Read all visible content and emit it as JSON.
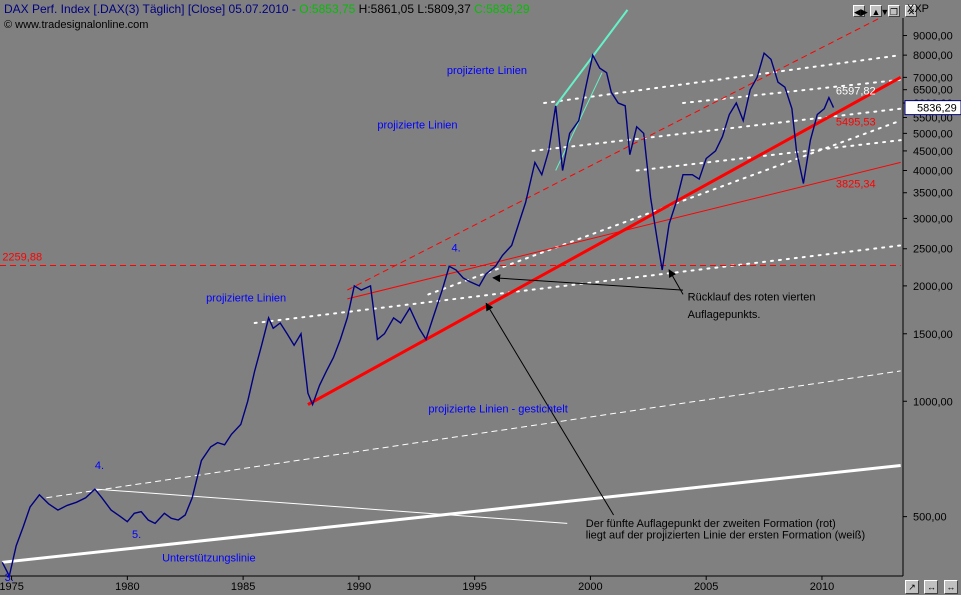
{
  "header": {
    "name": "DAX Perf. Index [.DAX(3)  Täglich] [Close] 05.07.2010 - ",
    "open": "O:5853,75",
    "high": "H:5861,05",
    "low": "L:5809,37",
    "close": "C:5836,29",
    "source": "© www.tradesignalonline.com",
    "currency": "XXP",
    "window_buttons": [
      "◀▶",
      "▲▼",
      "❐",
      "✕"
    ],
    "scroll_buttons": [
      "↗",
      "↔",
      "↔"
    ]
  },
  "chart_data": {
    "type": "line",
    "title": "",
    "xlabel": "",
    "ylabel": "",
    "log_scale": true,
    "grid": false,
    "x_ticks": [
      "1975",
      "1980",
      "1985",
      "1990",
      "1995",
      "2000",
      "2005",
      "2010"
    ],
    "x_range": [
      1974.5,
      2013.5
    ],
    "y_ticks": [
      "9000,00",
      "8000,00",
      "7000,00",
      "6500,00",
      "6000,00",
      "5500,00",
      "5000,00",
      "4500,00",
      "4000,00",
      "3500,00",
      "3000,00",
      "2500,00",
      "2000,00",
      "1500,00",
      "1000,00",
      "500,00"
    ],
    "y_range": [
      350,
      10000
    ],
    "last_price_label": "5836,29",
    "series": [
      {
        "color": "#000080",
        "points": [
          [
            1974.6,
            380
          ],
          [
            1974.9,
            350
          ],
          [
            1975.2,
            420
          ],
          [
            1975.5,
            470
          ],
          [
            1975.8,
            530
          ],
          [
            1976.2,
            570
          ],
          [
            1976.6,
            540
          ],
          [
            1977.0,
            520
          ],
          [
            1977.4,
            535
          ],
          [
            1977.8,
            545
          ],
          [
            1978.2,
            560
          ],
          [
            1978.6,
            590
          ],
          [
            1978.9,
            560
          ],
          [
            1979.3,
            520
          ],
          [
            1979.7,
            500
          ],
          [
            1980.0,
            485
          ],
          [
            1980.3,
            510
          ],
          [
            1980.6,
            515
          ],
          [
            1980.9,
            490
          ],
          [
            1981.2,
            480
          ],
          [
            1981.6,
            510
          ],
          [
            1981.9,
            495
          ],
          [
            1982.2,
            490
          ],
          [
            1982.5,
            505
          ],
          [
            1982.8,
            560
          ],
          [
            1983.2,
            700
          ],
          [
            1983.6,
            760
          ],
          [
            1983.9,
            780
          ],
          [
            1984.2,
            770
          ],
          [
            1984.5,
            820
          ],
          [
            1984.9,
            870
          ],
          [
            1985.2,
            1000
          ],
          [
            1985.5,
            1200
          ],
          [
            1985.8,
            1400
          ],
          [
            1986.1,
            1650
          ],
          [
            1986.3,
            1550
          ],
          [
            1986.6,
            1600
          ],
          [
            1986.9,
            1500
          ],
          [
            1987.2,
            1400
          ],
          [
            1987.5,
            1500
          ],
          [
            1987.8,
            1050
          ],
          [
            1988.0,
            980
          ],
          [
            1988.3,
            1100
          ],
          [
            1988.6,
            1200
          ],
          [
            1988.9,
            1300
          ],
          [
            1989.2,
            1450
          ],
          [
            1989.5,
            1650
          ],
          [
            1989.8,
            2000
          ],
          [
            1990.1,
            1950
          ],
          [
            1990.5,
            2000
          ],
          [
            1990.8,
            1450
          ],
          [
            1991.1,
            1500
          ],
          [
            1991.5,
            1650
          ],
          [
            1991.8,
            1600
          ],
          [
            1992.2,
            1750
          ],
          [
            1992.6,
            1550
          ],
          [
            1992.9,
            1450
          ],
          [
            1993.2,
            1650
          ],
          [
            1993.6,
            1950
          ],
          [
            1993.9,
            2250
          ],
          [
            1994.2,
            2200
          ],
          [
            1994.5,
            2100
          ],
          [
            1994.8,
            2050
          ],
          [
            1995.2,
            2000
          ],
          [
            1995.5,
            2150
          ],
          [
            1995.9,
            2250
          ],
          [
            1996.2,
            2400
          ],
          [
            1996.6,
            2550
          ],
          [
            1996.9,
            2900
          ],
          [
            1997.2,
            3300
          ],
          [
            1997.6,
            4200
          ],
          [
            1997.9,
            3900
          ],
          [
            1998.2,
            4500
          ],
          [
            1998.5,
            5900
          ],
          [
            1998.8,
            4000
          ],
          [
            1999.1,
            5000
          ],
          [
            1999.5,
            5400
          ],
          [
            1999.8,
            6600
          ],
          [
            2000.1,
            8000
          ],
          [
            2000.4,
            7400
          ],
          [
            2000.7,
            7200
          ],
          [
            2000.9,
            6400
          ],
          [
            2001.2,
            6000
          ],
          [
            2001.5,
            5900
          ],
          [
            2001.7,
            4400
          ],
          [
            2002.0,
            5200
          ],
          [
            2002.3,
            5000
          ],
          [
            2002.6,
            3400
          ],
          [
            2002.9,
            2600
          ],
          [
            2003.1,
            2200
          ],
          [
            2003.4,
            2900
          ],
          [
            2003.7,
            3300
          ],
          [
            2004.0,
            3900
          ],
          [
            2004.4,
            3900
          ],
          [
            2004.7,
            3800
          ],
          [
            2005.0,
            4300
          ],
          [
            2005.4,
            4500
          ],
          [
            2005.7,
            4900
          ],
          [
            2006.0,
            5600
          ],
          [
            2006.3,
            6000
          ],
          [
            2006.6,
            5400
          ],
          [
            2006.9,
            6500
          ],
          [
            2007.2,
            7000
          ],
          [
            2007.5,
            8100
          ],
          [
            2007.8,
            7800
          ],
          [
            2008.1,
            6800
          ],
          [
            2008.4,
            6600
          ],
          [
            2008.7,
            5800
          ],
          [
            2008.9,
            4500
          ],
          [
            2009.2,
            3700
          ],
          [
            2009.5,
            4800
          ],
          [
            2009.8,
            5600
          ],
          [
            2010.1,
            5800
          ],
          [
            2010.3,
            6200
          ],
          [
            2010.5,
            5836
          ]
        ]
      }
    ],
    "lines": [
      {
        "kind": "support-white",
        "style": "solid",
        "width": 3,
        "from": [
          1974.6,
          380
        ],
        "to": [
          2013.4,
          680
        ]
      },
      {
        "kind": "upper-white",
        "style": "solid",
        "width": 1,
        "from": [
          1978.6,
          590
        ],
        "to": [
          1999.0,
          480
        ]
      },
      {
        "kind": "projected-white-dashed",
        "style": "dashed",
        "width": 1,
        "from": [
          1976.5,
          560
        ],
        "to": [
          2013.4,
          1200
        ]
      },
      {
        "kind": "dotted-white-1",
        "style": "dotted",
        "width": 2,
        "from": [
          1985.5,
          1600
        ],
        "to": [
          2013.4,
          2550
        ]
      },
      {
        "kind": "dotted-white-2",
        "style": "dotted",
        "width": 2,
        "from": [
          1993.0,
          1900
        ],
        "to": [
          2013.4,
          5400
        ]
      },
      {
        "kind": "dotted-white-3",
        "style": "dotted",
        "width": 2,
        "from": [
          1998.0,
          6000
        ],
        "to": [
          2013.4,
          8000
        ]
      },
      {
        "kind": "dotted-white-4",
        "style": "dotted",
        "width": 2,
        "from": [
          1997.5,
          4500
        ],
        "to": [
          2013.4,
          5800
        ]
      },
      {
        "kind": "dotted-white-5",
        "style": "dotted",
        "width": 2,
        "from": [
          2002.0,
          4000
        ],
        "to": [
          2013.4,
          4800
        ]
      },
      {
        "kind": "dotted-white-6",
        "style": "dotted",
        "width": 2,
        "from": [
          2004.0,
          6000
        ],
        "to": [
          2013.4,
          6900
        ]
      },
      {
        "kind": "red-thick",
        "style": "solid",
        "width": 3,
        "from": [
          1987.8,
          980
        ],
        "to": [
          2013.4,
          7000
        ]
      },
      {
        "kind": "red-thin",
        "style": "solid",
        "width": 1,
        "from": [
          1989.5,
          1850
        ],
        "to": [
          2013.4,
          4200
        ]
      },
      {
        "kind": "red-dashed-trend",
        "style": "dashed",
        "width": 1,
        "from": [
          1989.5,
          1950
        ],
        "to": [
          2012.5,
          10000
        ]
      },
      {
        "kind": "red-horizontal",
        "style": "dashed",
        "width": 1,
        "from": [
          1974.5,
          2259.88
        ],
        "to": [
          2013.4,
          2259.88
        ]
      },
      {
        "kind": "cyan-upper",
        "style": "solid",
        "width": 2,
        "from": [
          1998.5,
          5900
        ],
        "to": [
          2001.6,
          10500
        ]
      },
      {
        "kind": "cyan-lower",
        "style": "solid",
        "width": 1,
        "from": [
          1998.5,
          4000
        ],
        "to": [
          2000.5,
          7200
        ]
      }
    ],
    "annotations": [
      {
        "text": "projizierte Linien",
        "color": "blue",
        "at": [
          1993.8,
          7150
        ]
      },
      {
        "text": "projizierte Linien",
        "color": "blue",
        "at": [
          1990.8,
          5150
        ]
      },
      {
        "text": "projizierte Linien",
        "color": "blue",
        "at": [
          1983.4,
          1820
        ]
      },
      {
        "text": "projizierte Linien - gestichtelt",
        "color": "blue",
        "at": [
          1993.0,
          935
        ]
      },
      {
        "text": "Unterstützungslinie",
        "color": "blue",
        "at": [
          1981.5,
          382
        ]
      },
      {
        "text": "2259,88",
        "color": "red",
        "at": [
          1974.6,
          2330
        ]
      },
      {
        "text": "6597,82",
        "color": "white",
        "at": [
          2010.6,
          6320
        ]
      },
      {
        "text": "5495,53",
        "color": "red",
        "at": [
          2010.6,
          5250
        ]
      },
      {
        "text": "3825,34",
        "color": "red",
        "at": [
          2010.6,
          3610
        ]
      },
      {
        "text": "Rücklauf des roten vierten",
        "color": "black",
        "at": [
          2004.2,
          1830
        ]
      },
      {
        "text": "Auflagepunkts.",
        "color": "black",
        "at": [
          2004.2,
          1650
        ]
      },
      {
        "text": "Der fünfte Auflagepunkt der zweiten Formation (rot)",
        "color": "black",
        "at": [
          1999.8,
          470
        ]
      },
      {
        "text": "liegt auf der projizierten Linie der ersten Formation (weiß)",
        "color": "black",
        "at": [
          1999.8,
          438
        ]
      },
      {
        "text": "4.",
        "color": "blue",
        "at": [
          1994.0,
          2460
        ]
      },
      {
        "text": "4.",
        "color": "blue",
        "at": [
          1978.6,
          665
        ]
      },
      {
        "text": "5.",
        "color": "blue",
        "at": [
          1980.2,
          440
        ]
      },
      {
        "text": "3.",
        "color": "blue",
        "at": [
          1974.7,
          340
        ]
      }
    ],
    "arrows": [
      {
        "from": [
          2004.0,
          1900
        ],
        "to": [
          2003.4,
          2200
        ]
      },
      {
        "from": [
          2004.0,
          1950
        ],
        "to": [
          1995.8,
          2100
        ]
      },
      {
        "from": [
          2001.0,
          505
        ],
        "to": [
          1995.5,
          1800
        ]
      }
    ]
  }
}
